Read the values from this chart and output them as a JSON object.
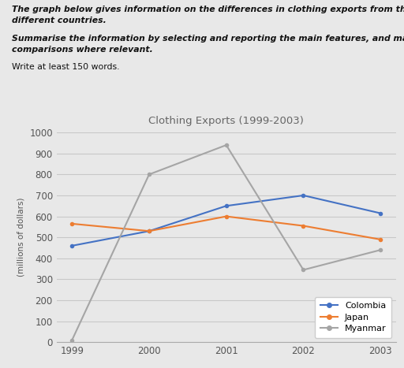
{
  "title": "Clothing Exports (1999-2003)",
  "ylabel": "(millions of dollars)",
  "years": [
    1999,
    2000,
    2001,
    2002,
    2003
  ],
  "colombia": [
    460,
    530,
    650,
    700,
    615
  ],
  "japan": [
    565,
    530,
    600,
    555,
    490
  ],
  "myanmar": [
    10,
    800,
    940,
    345,
    440
  ],
  "colombia_color": "#4472C4",
  "japan_color": "#ED7D31",
  "myanmar_color": "#A5A5A5",
  "ylim": [
    0,
    1000
  ],
  "yticks": [
    0,
    100,
    200,
    300,
    400,
    500,
    600,
    700,
    800,
    900,
    1000
  ],
  "header_bold_italic_1": "The graph below gives information on the differences in clothing exports from three",
  "header_bold_italic_2": "different countries.",
  "header_bold_italic_3": "Summarise the information by selecting and reporting the main features, and make",
  "header_bold_italic_4": "comparisons where relevant.",
  "header_normal": "Write at least 150 words.",
  "bg_color": "#e8e8e8",
  "plot_bg_color": "#e8e8e8",
  "grid_color": "#c8c8c8",
  "title_color": "#666666",
  "tick_color": "#555555",
  "ylabel_color": "#555555"
}
